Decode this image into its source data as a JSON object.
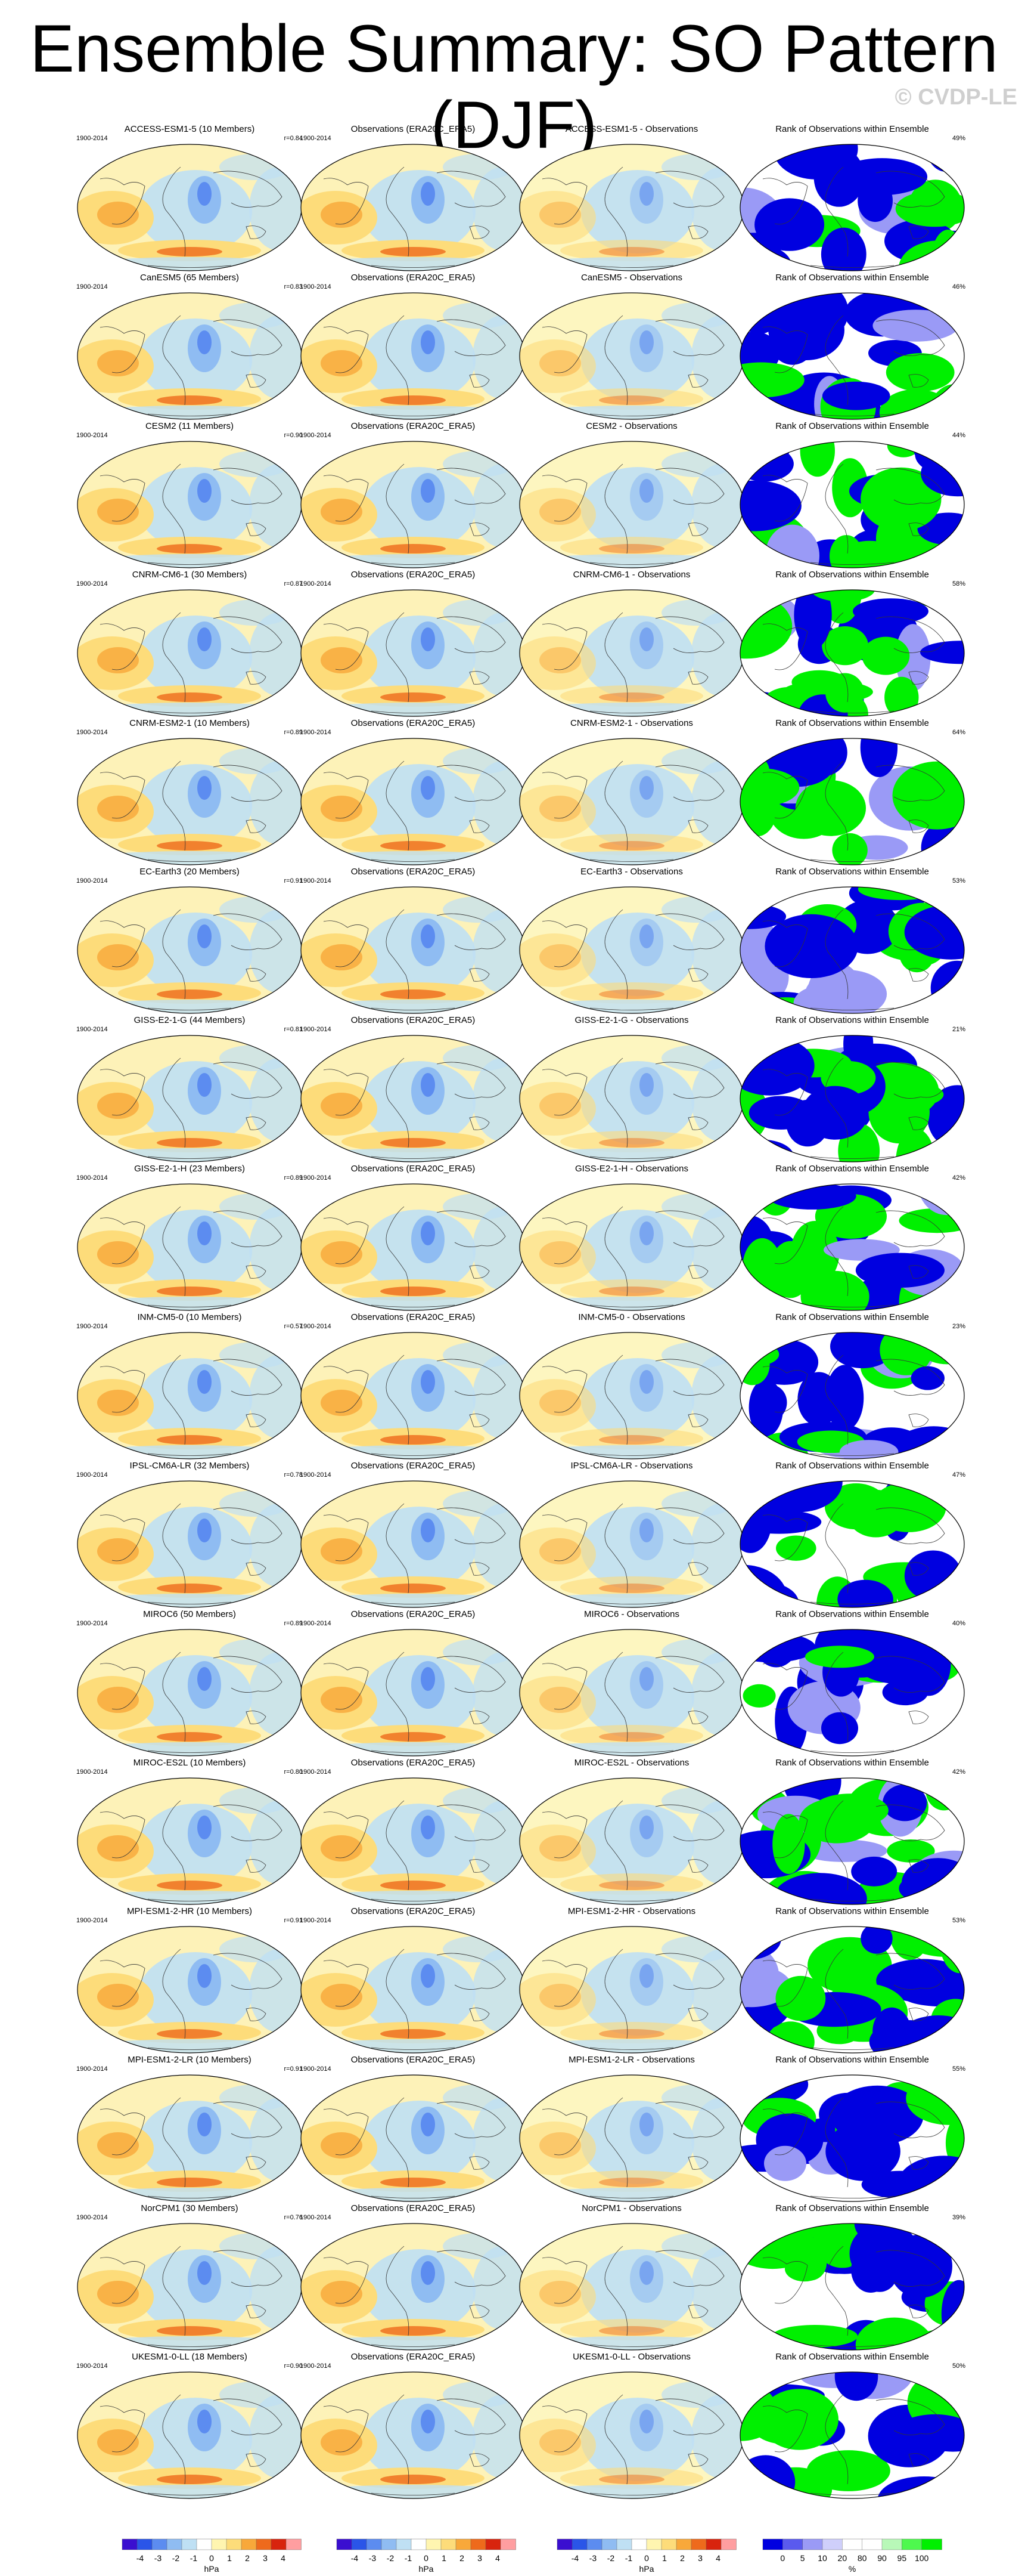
{
  "title": "Ensemble Summary: SO Pattern (DJF)",
  "credit": "© CVDP-LE",
  "period": "1900-2014",
  "obs_title": "Observations (ERA20C_ERA5)",
  "rank_title": "Rank of Observations within Ensemble",
  "colors": {
    "pattern_scale": [
      "#3a0fd0",
      "#2a55e8",
      "#5c8cf0",
      "#8fbcf2",
      "#bfe0f4",
      "#ffffff",
      "#fff5b0",
      "#fddc7a",
      "#f8a83a",
      "#ee6a1c",
      "#d8240e",
      "#ff9ea0"
    ],
    "rank_scale": [
      "#0000e0",
      "#5a5aee",
      "#9a9af6",
      "#cfcffb",
      "#ffffff",
      "#ffffff",
      "#b8f8b8",
      "#4ef84e",
      "#00f000"
    ],
    "land_line": "#333333"
  },
  "chart_data": {
    "type": "panel_grid_maps",
    "columns": [
      "model ensemble mean",
      "observations",
      "model - observations",
      "rank of observations within ensemble"
    ],
    "rows": [
      {
        "model": "ACCESS-ESM1-5",
        "title": "ACCESS-ESM1-5 (10 Members)",
        "r": "r=0.84",
        "diff_title": "ACCESS-ESM1-5 - Observations",
        "rank_pct": "49%"
      },
      {
        "model": "CanESM5",
        "title": "CanESM5 (65 Members)",
        "r": "r=0.83",
        "diff_title": "CanESM5 - Observations",
        "rank_pct": "46%"
      },
      {
        "model": "CESM2",
        "title": "CESM2 (11 Members)",
        "r": "r=0.90",
        "diff_title": "CESM2 - Observations",
        "rank_pct": "44%"
      },
      {
        "model": "CNRM-CM6-1",
        "title": "CNRM-CM6-1 (30 Members)",
        "r": "r=0.87",
        "diff_title": "CNRM-CM6-1 - Observations",
        "rank_pct": "58%"
      },
      {
        "model": "CNRM-ESM2-1",
        "title": "CNRM-ESM2-1 (10 Members)",
        "r": "r=0.89",
        "diff_title": "CNRM-ESM2-1 - Observations",
        "rank_pct": "64%"
      },
      {
        "model": "EC-Earth3",
        "title": "EC-Earth3 (20 Members)",
        "r": "r=0.91",
        "diff_title": "EC-Earth3 - Observations",
        "rank_pct": "53%"
      },
      {
        "model": "GISS-E2-1-G",
        "title": "GISS-E2-1-G (44 Members)",
        "r": "r=0.81",
        "diff_title": "GISS-E2-1-G - Observations",
        "rank_pct": "21%"
      },
      {
        "model": "GISS-E2-1-H",
        "title": "GISS-E2-1-H (23 Members)",
        "r": "r=0.89",
        "diff_title": "GISS-E2-1-H - Observations",
        "rank_pct": "42%"
      },
      {
        "model": "INM-CM5-0",
        "title": "INM-CM5-0 (10 Members)",
        "r": "r=0.57",
        "diff_title": "INM-CM5-0 - Observations",
        "rank_pct": "23%"
      },
      {
        "model": "IPSL-CM6A-LR",
        "title": "IPSL-CM6A-LR (32 Members)",
        "r": "r=0.78",
        "diff_title": "IPSL-CM6A-LR - Observations",
        "rank_pct": "47%"
      },
      {
        "model": "MIROC6",
        "title": "MIROC6 (50 Members)",
        "r": "r=0.89",
        "diff_title": "MIROC6 - Observations",
        "rank_pct": "40%"
      },
      {
        "model": "MIROC-ES2L",
        "title": "MIROC-ES2L (10 Members)",
        "r": "r=0.80",
        "diff_title": "MIROC-ES2L - Observations",
        "rank_pct": "42%"
      },
      {
        "model": "MPI-ESM1-2-HR",
        "title": "MPI-ESM1-2-HR (10 Members)",
        "r": "r=0.91",
        "diff_title": "MPI-ESM1-2-HR - Observations",
        "rank_pct": "53%"
      },
      {
        "model": "MPI-ESM1-2-LR",
        "title": "MPI-ESM1-2-LR (10 Members)",
        "r": "r=0.91",
        "diff_title": "MPI-ESM1-2-LR - Observations",
        "rank_pct": "55%"
      },
      {
        "model": "NorCPM1",
        "title": "NorCPM1 (30 Members)",
        "r": "r=0.76",
        "diff_title": "NorCPM1 - Observations",
        "rank_pct": "39%"
      },
      {
        "model": "UKESM1-0-LL",
        "title": "UKESM1-0-LL (18 Members)",
        "r": "r=0.90",
        "diff_title": "UKESM1-0-LL - Observations",
        "rank_pct": "50%"
      }
    ],
    "colorbars": [
      {
        "ticks": [
          "-4",
          "-3",
          "-2",
          "-1",
          "0",
          "1",
          "2",
          "3",
          "4"
        ],
        "units": "hPa"
      },
      {
        "ticks": [
          "-4",
          "-3",
          "-2",
          "-1",
          "0",
          "1",
          "2",
          "3",
          "4"
        ],
        "units": "hPa"
      },
      {
        "ticks": [
          "-4",
          "-3",
          "-2",
          "-1",
          "0",
          "1",
          "2",
          "3",
          "4"
        ],
        "units": "hPa"
      },
      {
        "ticks": [
          "0",
          "5",
          "10",
          "20",
          "80",
          "90",
          "95",
          "100"
        ],
        "units": "%"
      }
    ]
  }
}
